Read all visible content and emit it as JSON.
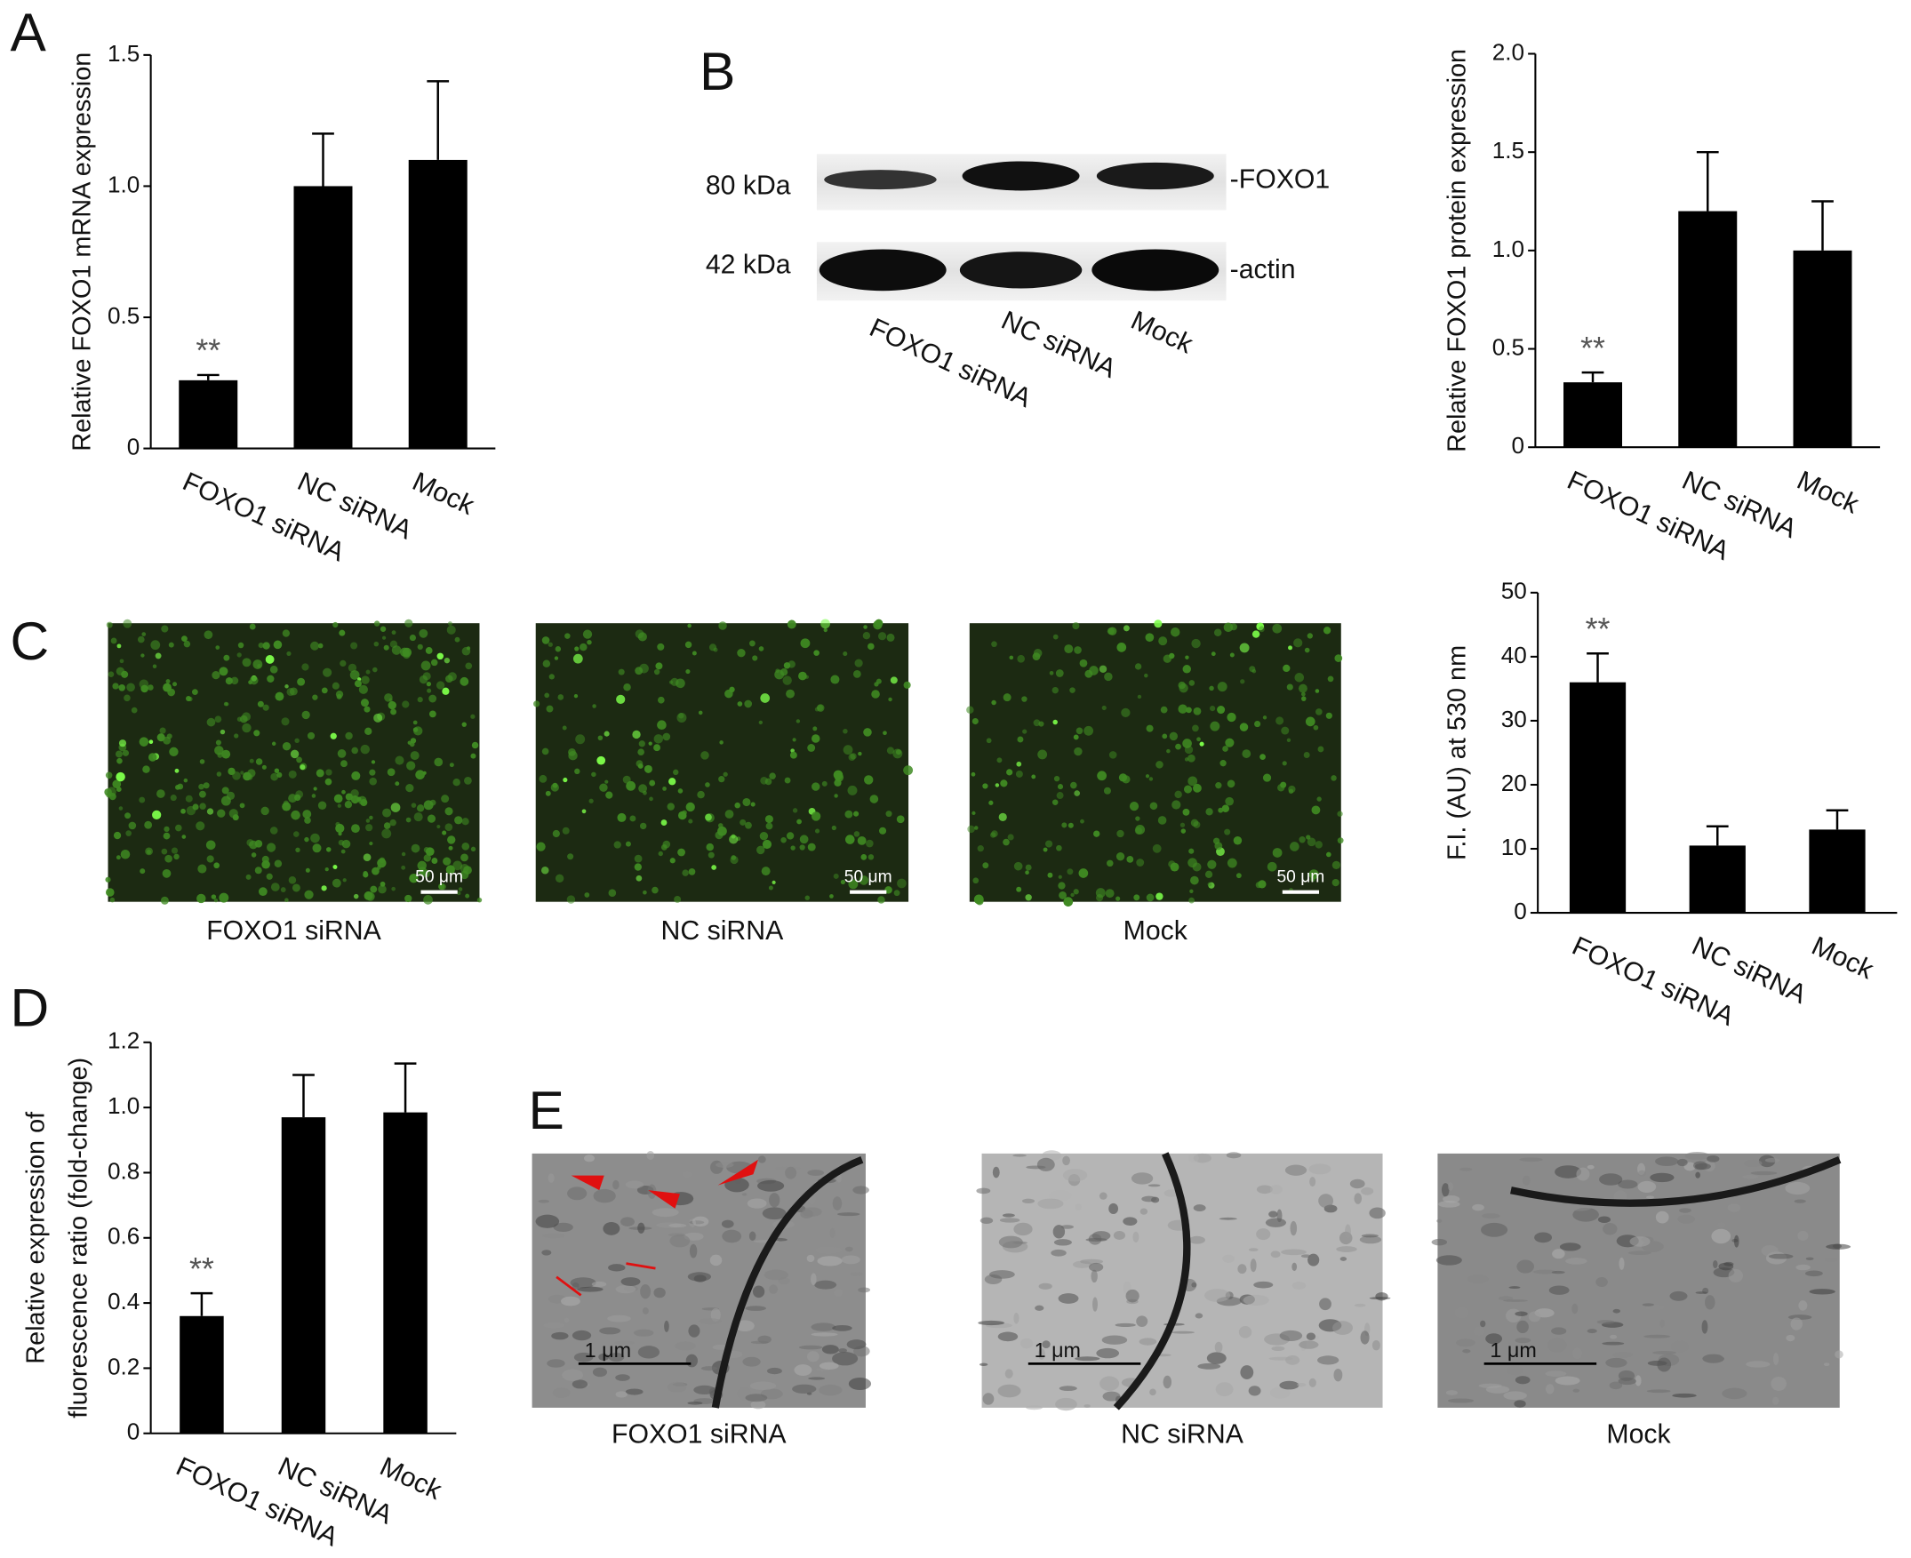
{
  "chart_data": [
    {
      "type": "bar",
      "panel": "A",
      "ylabel": "Relative FOXO1 mRNA expression",
      "categories": [
        "FOXO1 siRNA",
        "NC siRNA",
        "Mock"
      ],
      "values": [
        0.26,
        1.0,
        1.1
      ],
      "errors": [
        0.02,
        0.2,
        0.3
      ],
      "annotations": [
        "**",
        null,
        null
      ],
      "color": "#000000",
      "ylim": [
        0,
        1.5
      ],
      "yticks": [
        0,
        0.5,
        {
          "value": 1,
          "label": "1.0"
        },
        1.5
      ]
    },
    {
      "type": "bar",
      "ylabel": "Relative FOXO1 protein expression",
      "categories": [
        "FOXO1 siRNA",
        "NC siRNA",
        "Mock"
      ],
      "values": [
        0.33,
        1.2,
        1.0
      ],
      "errors": [
        0.05,
        0.3,
        0.25
      ],
      "annotations": [
        "**",
        null,
        null
      ],
      "color": "#000000",
      "ylim": [
        0,
        2
      ],
      "yticks": [
        0,
        0.5,
        {
          "value": 1,
          "label": "1.0"
        },
        1.5,
        {
          "value": 2,
          "label": "2.0"
        }
      ]
    },
    {
      "type": "bar",
      "panel": "C",
      "ylabel": "F.I. (AU) at 530 nm",
      "categories": [
        "FOXO1 siRNA",
        "NC siRNA",
        "Mock"
      ],
      "values": [
        36,
        10.5,
        13
      ],
      "errors": [
        4.5,
        3,
        3
      ],
      "annotations": [
        "**",
        null,
        null
      ],
      "color": "#000000",
      "ylim": [
        0,
        50
      ],
      "yticks": [
        0,
        10,
        20,
        30,
        40,
        50
      ]
    },
    {
      "type": "bar",
      "panel": "D",
      "ylabel": [
        "Relative expression of",
        "fluorescence ratio (fold-change)"
      ],
      "categories": [
        "FOXO1 siRNA",
        "NC siRNA",
        "Mock"
      ],
      "values": [
        0.36,
        0.97,
        0.985
      ],
      "errors": [
        0.07,
        0.13,
        0.15
      ],
      "annotations": [
        "**",
        null,
        null
      ],
      "color": "#000000",
      "ylim": [
        0,
        1.2
      ],
      "yticks": [
        0,
        0.2,
        0.4,
        0.6,
        0.8,
        {
          "value": 1,
          "label": "1.0"
        },
        1.2
      ]
    }
  ],
  "blot": {
    "panel": "B",
    "markers": [
      "80 kDa",
      "42 kDa"
    ],
    "bands": [
      "-FOXO1",
      "-actin"
    ],
    "lanes": [
      "FOXO1 siRNA",
      "NC siRNA",
      "Mock"
    ]
  },
  "fluorescence_images": {
    "captions": [
      "FOXO1 siRNA",
      "NC siRNA",
      "Mock"
    ],
    "scale_bar": "50 μm"
  },
  "em_images": {
    "panel": "E",
    "captions": [
      "FOXO1 siRNA",
      "NC siRNA",
      "Mock"
    ],
    "scale_bar": "1 μm"
  }
}
